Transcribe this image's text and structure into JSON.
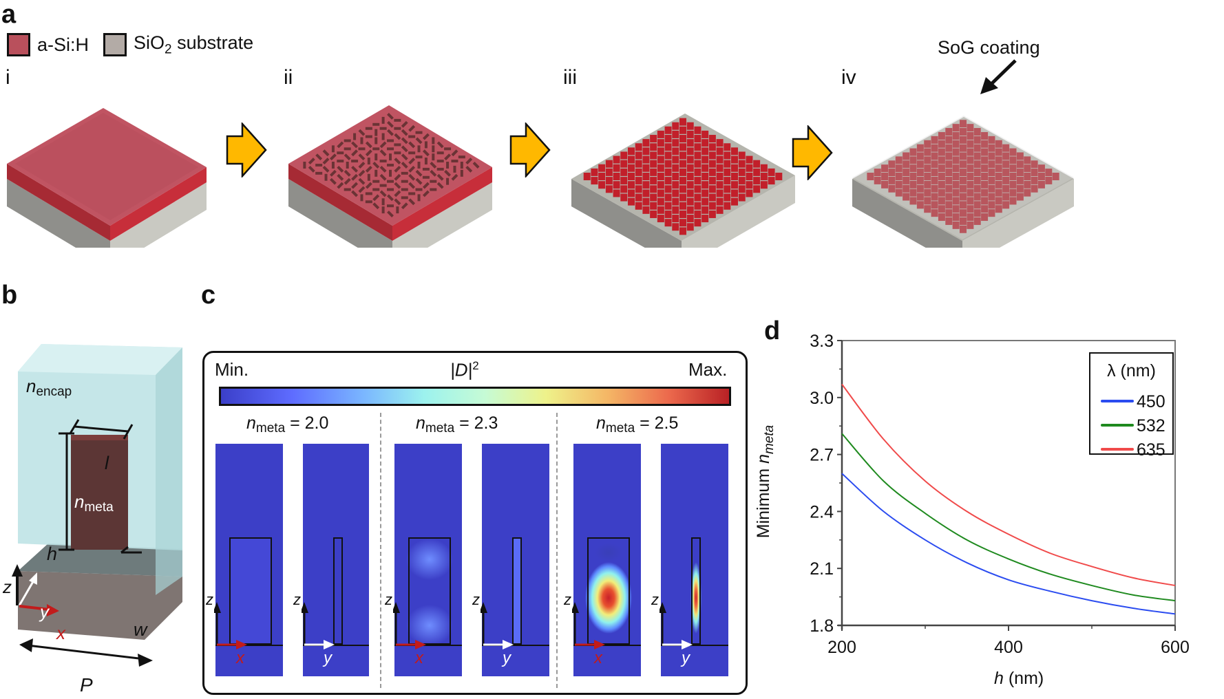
{
  "figure": {
    "panels": {
      "a": {
        "label": "a",
        "legend": [
          {
            "name": "a-Si:H",
            "color": "#b9505c"
          },
          {
            "name": "SiO2 substrate",
            "text_main": "SiO",
            "text_sub": "2",
            "text_rest": " substrate",
            "color": "#b3aba6"
          }
        ],
        "steps": [
          {
            "label": "i",
            "description": "a-Si:H film on SiO2 substrate"
          },
          {
            "label": "ii",
            "description": "patterned resist on a-Si:H"
          },
          {
            "label": "iii",
            "description": "etched a-Si:H nanofins"
          },
          {
            "label": "iv",
            "description": "SoG-coated nanofins"
          }
        ],
        "annotation": "SoG coating",
        "arrow_color": "#ffb800"
      },
      "b": {
        "label": "b",
        "labels": {
          "n_encap": "n",
          "n_encap_sub": "encap",
          "n_meta": "n",
          "n_meta_sub": "meta",
          "l": "l",
          "h": "h",
          "w": "w",
          "P": "P",
          "x": "x",
          "y": "y",
          "z": "z"
        }
      },
      "c": {
        "label": "c",
        "colorbar": {
          "min_label": "Min.",
          "max_label": "Max.",
          "quantity": "|D|",
          "quantity_sup": "2"
        },
        "cases": [
          {
            "n": "n",
            "sub": "meta",
            "value": " = 2.0",
            "intensity_xz": 0.05,
            "intensity_yz": 0.05
          },
          {
            "n": "n",
            "sub": "meta",
            "value": " = 2.3",
            "intensity_xz": 0.3,
            "intensity_yz": 0.25
          },
          {
            "n": "n",
            "sub": "meta",
            "value": " = 2.5",
            "intensity_xz": 1.0,
            "intensity_yz": 1.0
          }
        ],
        "axis_labels": {
          "x": "x",
          "y": "y",
          "z": "z"
        }
      },
      "d": {
        "label": "d"
      }
    }
  },
  "chart_data": {
    "type": "line",
    "title": "",
    "xlabel": "h (nm)",
    "xlabel_var": "h",
    "xlabel_unit": " (nm)",
    "ylabel": "Minimum n_meta",
    "ylabel_main": "Minimum ",
    "ylabel_var": "n",
    "ylabel_sub": "meta",
    "xlim": [
      200,
      600
    ],
    "ylim": [
      1.8,
      3.3
    ],
    "xticks": [
      200,
      400,
      600
    ],
    "xticks_minor": [
      300,
      500
    ],
    "yticks": [
      "1.8",
      "2.1",
      "2.4",
      "2.7",
      "3.0",
      "3.3"
    ],
    "yticks_minor": [
      1.95,
      2.25,
      2.55,
      2.85,
      3.15
    ],
    "grid": false,
    "legend": {
      "title": "λ (nm)",
      "placement": "top-right"
    },
    "x": [
      200,
      250,
      300,
      350,
      400,
      450,
      500,
      550,
      600
    ],
    "series": [
      {
        "name": "450",
        "color": "#2b4cf0",
        "values": [
          2.6,
          2.4,
          2.25,
          2.13,
          2.04,
          1.98,
          1.93,
          1.89,
          1.86
        ]
      },
      {
        "name": "532",
        "color": "#1f8a1f",
        "values": [
          2.81,
          2.56,
          2.39,
          2.25,
          2.15,
          2.07,
          2.01,
          1.96,
          1.93
        ]
      },
      {
        "name": "635",
        "color": "#f04a4a",
        "values": [
          3.07,
          2.78,
          2.56,
          2.4,
          2.28,
          2.18,
          2.11,
          2.05,
          2.01
        ]
      }
    ]
  }
}
